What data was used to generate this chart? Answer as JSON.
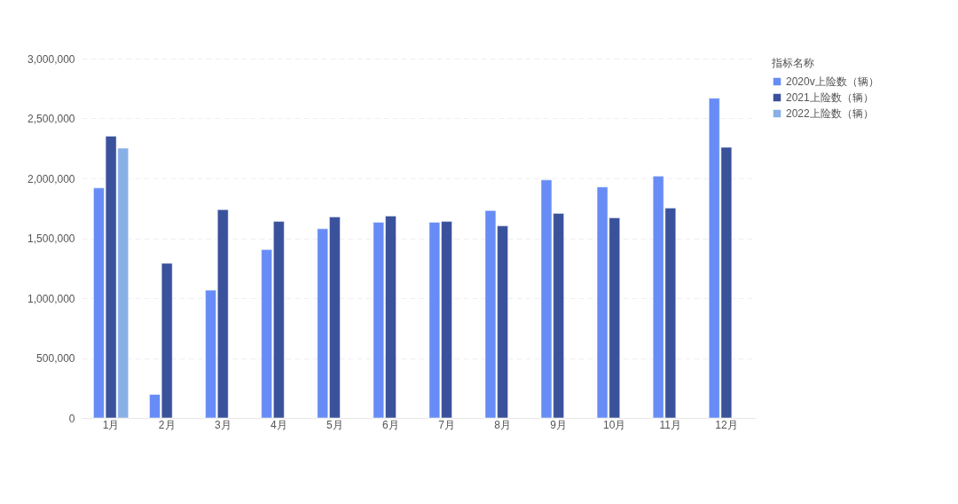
{
  "chart_data": {
    "type": "bar",
    "legend_title": "指标名称",
    "categories": [
      "1月",
      "2月",
      "3月",
      "4月",
      "5月",
      "6月",
      "7月",
      "8月",
      "9月",
      "10月",
      "11月",
      "12月"
    ],
    "series": [
      {
        "name": "2020v上险数（辆）",
        "color": "#688cf6",
        "values": [
          1920000,
          196000,
          1066000,
          1405000,
          1579000,
          1633000,
          1633000,
          1731000,
          1987000,
          1928000,
          2018000,
          2669000
        ]
      },
      {
        "name": "2021上险数（辆）",
        "color": "#3a519b",
        "values": [
          2352000,
          1291000,
          1738000,
          1640000,
          1677000,
          1685000,
          1640000,
          1603000,
          1707000,
          1670000,
          1751000,
          2259000
        ]
      },
      {
        "name": "2022上险数（辆）",
        "color": "#88b0e6",
        "values": [
          2252000,
          null,
          null,
          null,
          null,
          null,
          null,
          null,
          null,
          null,
          null,
          null
        ]
      }
    ],
    "ylim": [
      0,
      3000000
    ],
    "yticks": [
      0,
      {
        "value": 500000,
        "label": "500,000"
      },
      {
        "value": 1000000,
        "label": "1,000,000"
      },
      {
        "value": 1500000,
        "label": "1,500,000"
      },
      {
        "value": 2000000,
        "label": "2,000,000"
      },
      {
        "value": 2500000,
        "label": "2,500,000"
      },
      {
        "value": 3000000,
        "label": "3,000,000"
      }
    ],
    "grid": "y",
    "legend": "top right"
  }
}
